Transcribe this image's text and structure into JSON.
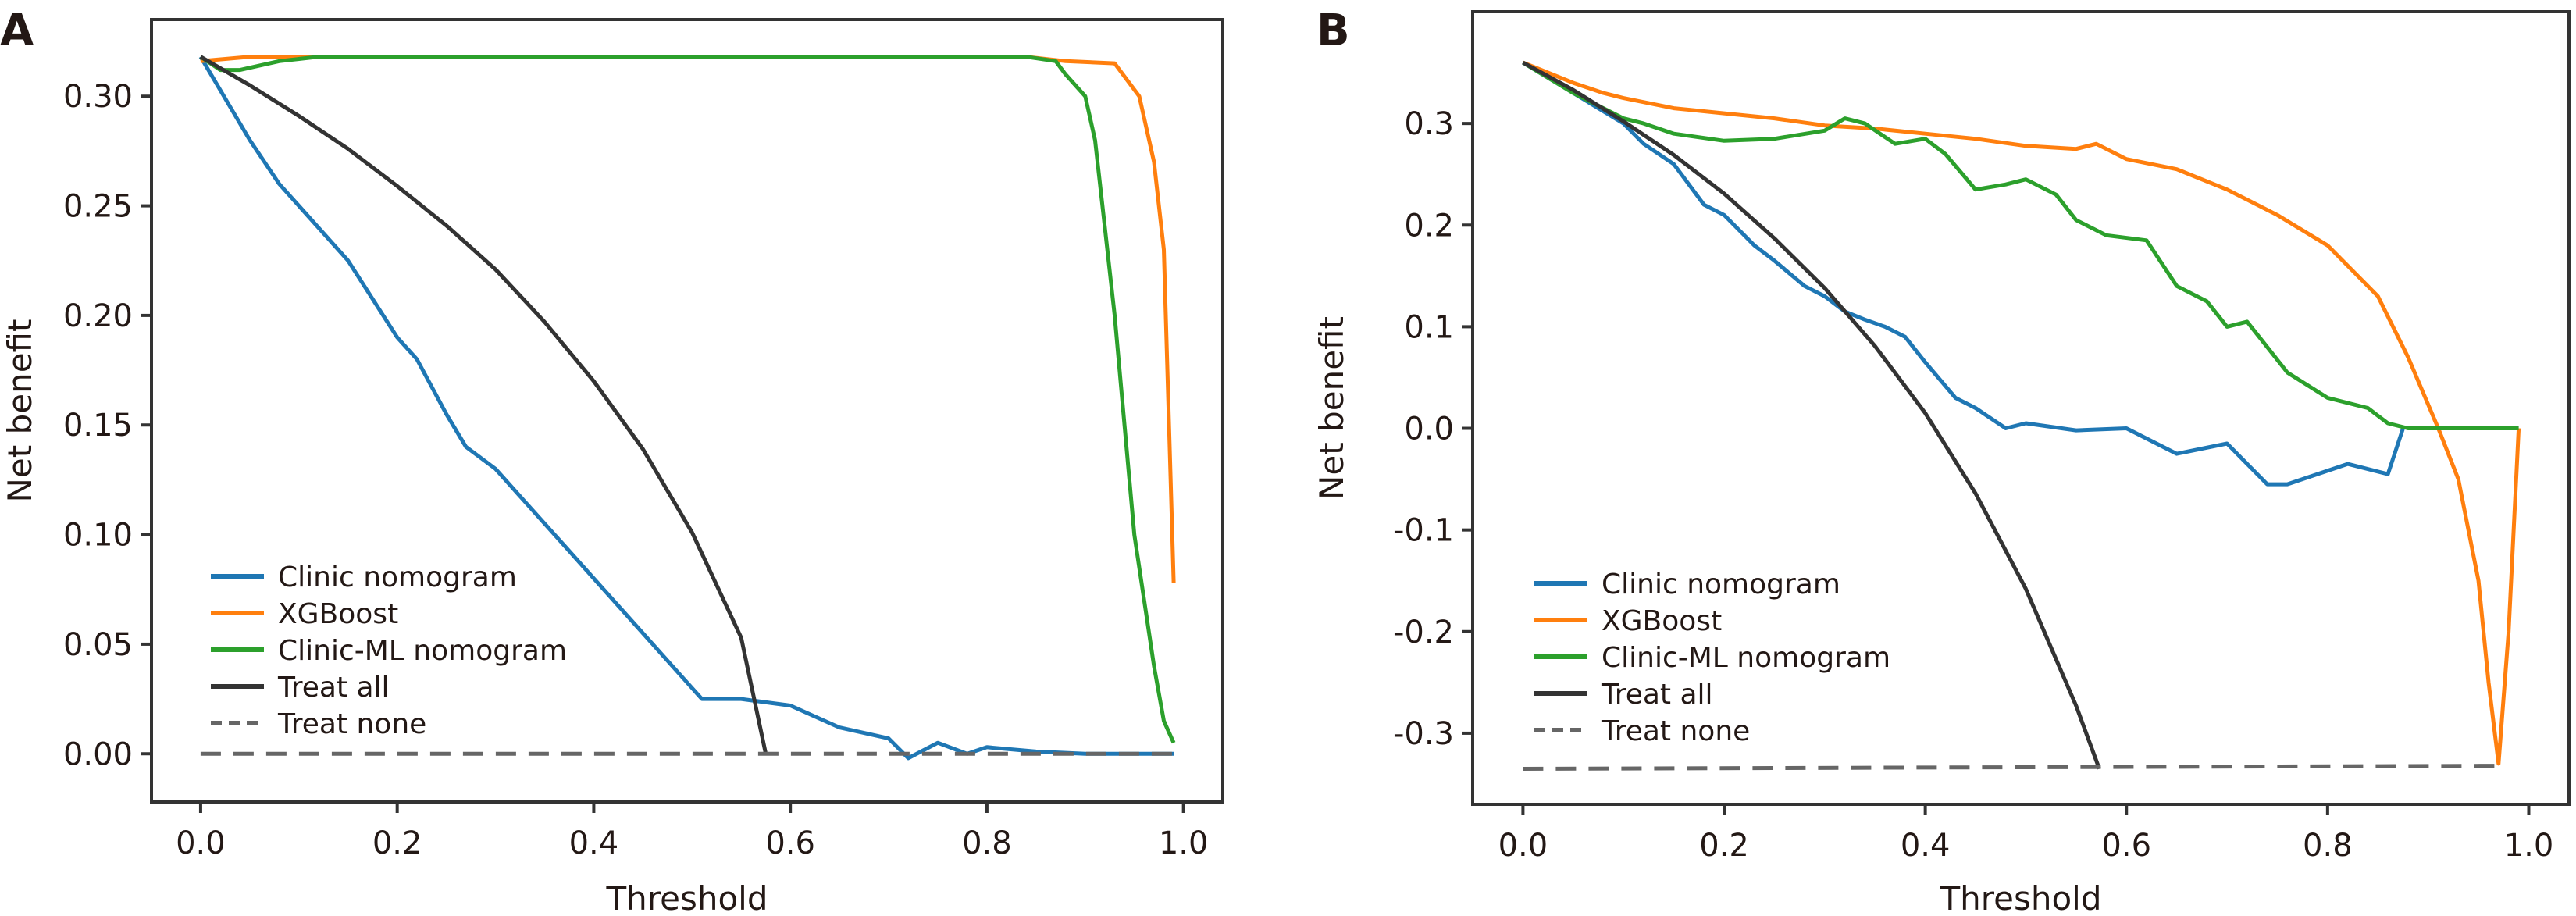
{
  "chart_data": [
    {
      "type": "line",
      "panel": "A",
      "xlabel": "Threshold",
      "ylabel": "Net benefit",
      "xlim": [
        -0.05,
        1.04
      ],
      "ylim": [
        -0.022,
        0.335
      ],
      "xticks": [
        0.0,
        0.2,
        0.4,
        0.6,
        0.8,
        1.0
      ],
      "xtick_labels": [
        "0.0",
        "0.2",
        "0.4",
        "0.6",
        "0.8",
        "1.0"
      ],
      "yticks": [
        0.0,
        0.05,
        0.1,
        0.15,
        0.2,
        0.25,
        0.3
      ],
      "ytick_labels": [
        "0.00",
        "0.05",
        "0.10",
        "0.15",
        "0.20",
        "0.25",
        "0.30"
      ],
      "grid": false,
      "legend_position": "lower-left",
      "series": [
        {
          "name": "Clinic nomogram",
          "color": "#1f77b4",
          "style": "solid",
          "x": [
            0,
            0.05,
            0.08,
            0.1,
            0.15,
            0.2,
            0.22,
            0.25,
            0.27,
            0.3,
            0.33,
            0.37,
            0.4,
            0.43,
            0.45,
            0.48,
            0.51,
            0.55,
            0.6,
            0.65,
            0.7,
            0.72,
            0.75,
            0.78,
            0.8,
            0.85,
            0.9,
            0.99
          ],
          "y": [
            0.318,
            0.28,
            0.26,
            0.25,
            0.225,
            0.19,
            0.18,
            0.155,
            0.14,
            0.13,
            0.115,
            0.095,
            0.08,
            0.065,
            0.055,
            0.04,
            0.025,
            0.025,
            0.022,
            0.012,
            0.007,
            -0.002,
            0.005,
            0.0,
            0.003,
            0.001,
            0.0,
            0.0
          ]
        },
        {
          "name": "XGBoost",
          "color": "#ff7f0e",
          "style": "solid",
          "x": [
            0,
            0.05,
            0.1,
            0.84,
            0.88,
            0.93,
            0.955,
            0.97,
            0.98,
            0.99
          ],
          "y": [
            0.316,
            0.318,
            0.318,
            0.318,
            0.316,
            0.315,
            0.3,
            0.27,
            0.23,
            0.078
          ]
        },
        {
          "name": "Clinic-ML nomogram",
          "color": "#2ca02c",
          "style": "solid",
          "x": [
            0,
            0.02,
            0.04,
            0.08,
            0.12,
            0.84,
            0.87,
            0.88,
            0.9,
            0.91,
            0.92,
            0.93,
            0.94,
            0.95,
            0.96,
            0.97,
            0.98,
            0.99
          ],
          "y": [
            0.318,
            0.312,
            0.312,
            0.316,
            0.318,
            0.318,
            0.316,
            0.31,
            0.3,
            0.28,
            0.24,
            0.2,
            0.15,
            0.1,
            0.07,
            0.04,
            0.015,
            0.005
          ]
        },
        {
          "name": "Treat all",
          "color": "#333333",
          "style": "solid",
          "x": [
            0,
            0.05,
            0.1,
            0.15,
            0.2,
            0.25,
            0.3,
            0.35,
            0.4,
            0.45,
            0.5,
            0.55,
            0.575
          ],
          "y": [
            0.318,
            0.305,
            0.291,
            0.276,
            0.259,
            0.241,
            0.221,
            0.197,
            0.17,
            0.139,
            0.101,
            0.053,
            0.0
          ]
        },
        {
          "name": "Treat none",
          "color": "#666666",
          "style": "dashed",
          "x": [
            0,
            0.99
          ],
          "y": [
            0,
            0
          ]
        }
      ]
    },
    {
      "type": "line",
      "panel": "B",
      "xlabel": "Threshold",
      "ylabel": "Net benefit",
      "xlim": [
        -0.05,
        1.04
      ],
      "ylim": [
        -0.37,
        0.41
      ],
      "xticks": [
        0.0,
        0.2,
        0.4,
        0.6,
        0.8,
        1.0
      ],
      "xtick_labels": [
        "0.0",
        "0.2",
        "0.4",
        "0.6",
        "0.8",
        "1.0"
      ],
      "yticks": [
        -0.3,
        -0.2,
        -0.1,
        0.0,
        0.1,
        0.2,
        0.3
      ],
      "ytick_labels": [
        "-0.3",
        "-0.2",
        "-0.1",
        "0.0",
        "0.1",
        "0.2",
        "0.3"
      ],
      "grid": false,
      "legend_position": "lower-left",
      "series": [
        {
          "name": "Clinic nomogram",
          "color": "#1f77b4",
          "style": "solid",
          "x": [
            0,
            0.05,
            0.1,
            0.12,
            0.15,
            0.18,
            0.2,
            0.23,
            0.25,
            0.28,
            0.3,
            0.32,
            0.34,
            0.36,
            0.38,
            0.4,
            0.43,
            0.45,
            0.48,
            0.5,
            0.55,
            0.6,
            0.65,
            0.7,
            0.74,
            0.76,
            0.82,
            0.86,
            0.875
          ],
          "y": [
            0.36,
            0.33,
            0.3,
            0.28,
            0.26,
            0.22,
            0.21,
            0.18,
            0.165,
            0.14,
            0.13,
            0.115,
            0.107,
            0.1,
            0.09,
            0.065,
            0.03,
            0.02,
            0.0,
            0.005,
            -0.002,
            0.0,
            -0.025,
            -0.015,
            -0.055,
            -0.055,
            -0.035,
            -0.045,
            0.0
          ]
        },
        {
          "name": "XGBoost",
          "color": "#ff7f0e",
          "style": "solid",
          "x": [
            0,
            0.05,
            0.08,
            0.1,
            0.15,
            0.2,
            0.25,
            0.3,
            0.35,
            0.4,
            0.45,
            0.5,
            0.55,
            0.57,
            0.6,
            0.65,
            0.7,
            0.75,
            0.8,
            0.85,
            0.88,
            0.91,
            0.93,
            0.95,
            0.96,
            0.97,
            0.98,
            0.99
          ],
          "y": [
            0.36,
            0.34,
            0.33,
            0.325,
            0.315,
            0.31,
            0.305,
            0.298,
            0.295,
            0.29,
            0.285,
            0.278,
            0.275,
            0.28,
            0.265,
            0.255,
            0.235,
            0.21,
            0.18,
            0.13,
            0.07,
            0.0,
            -0.05,
            -0.15,
            -0.25,
            -0.33,
            -0.2,
            0.0
          ]
        },
        {
          "name": "Clinic-ML nomogram",
          "color": "#2ca02c",
          "style": "solid",
          "x": [
            0,
            0.05,
            0.1,
            0.12,
            0.15,
            0.2,
            0.25,
            0.3,
            0.32,
            0.34,
            0.37,
            0.4,
            0.42,
            0.45,
            0.48,
            0.5,
            0.53,
            0.55,
            0.58,
            0.62,
            0.65,
            0.68,
            0.7,
            0.72,
            0.74,
            0.76,
            0.8,
            0.84,
            0.86,
            0.88,
            0.99
          ],
          "y": [
            0.36,
            0.33,
            0.305,
            0.3,
            0.29,
            0.283,
            0.285,
            0.293,
            0.305,
            0.3,
            0.28,
            0.285,
            0.27,
            0.235,
            0.24,
            0.245,
            0.23,
            0.205,
            0.19,
            0.185,
            0.14,
            0.125,
            0.1,
            0.105,
            0.08,
            0.055,
            0.03,
            0.02,
            0.005,
            0.0,
            0.0
          ]
        },
        {
          "name": "Treat all",
          "color": "#333333",
          "style": "solid",
          "x": [
            0,
            0.05,
            0.1,
            0.15,
            0.2,
            0.25,
            0.3,
            0.35,
            0.4,
            0.45,
            0.5,
            0.55,
            0.573
          ],
          "y": [
            0.36,
            0.333,
            0.302,
            0.269,
            0.231,
            0.187,
            0.138,
            0.081,
            0.015,
            -0.064,
            -0.158,
            -0.273,
            -0.335
          ]
        },
        {
          "name": "Treat none",
          "color": "#666666",
          "style": "dashed",
          "x": [
            0,
            0.97
          ],
          "y": [
            -0.335,
            -0.332
          ]
        }
      ]
    }
  ]
}
